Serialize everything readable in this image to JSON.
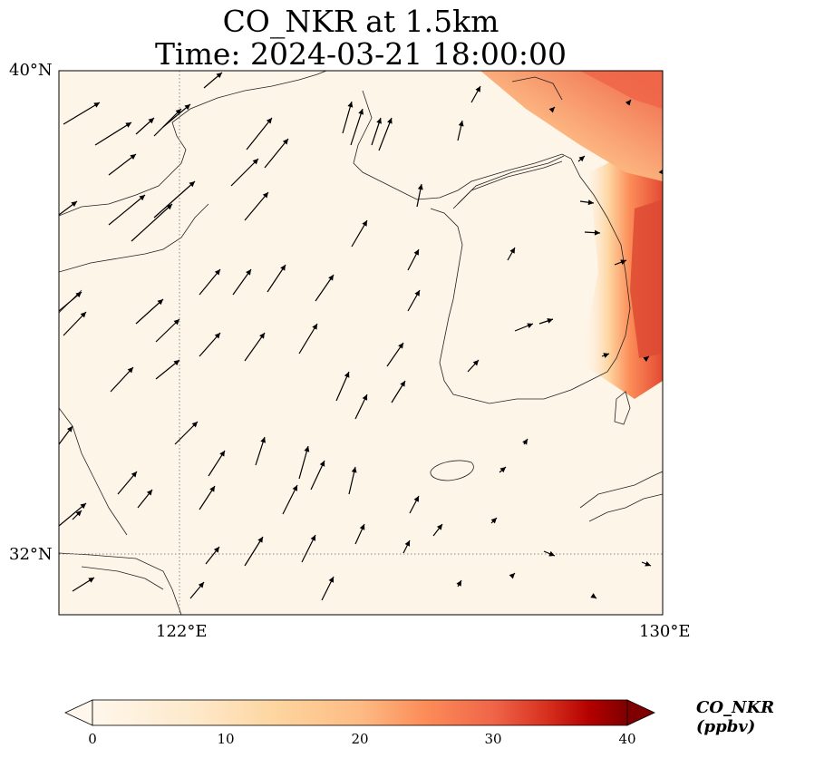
{
  "title": {
    "line1": "CO_NKR at 1.5km",
    "line2": "Time: 2024-03-21 18:00:00"
  },
  "axes": {
    "lon_ticks": [
      "122°E",
      "130°E"
    ],
    "lat_ticks": [
      "40°N",
      "32°N"
    ],
    "lon_range": [
      120,
      130
    ],
    "lat_range": [
      31,
      40
    ]
  },
  "colorbar": {
    "label": "CO_NKR (ppbv)",
    "ticks": [
      "0",
      "10",
      "20",
      "30",
      "40"
    ],
    "range": [
      0,
      40
    ],
    "colormap": "OrRd",
    "extend": "both"
  },
  "colors": {
    "low": "#fff7ec",
    "mid": "#fdbb84",
    "high": "#d7301f",
    "max": "#7f0000"
  },
  "overlays": [
    "wind-vectors",
    "coastlines",
    "gridlines"
  ]
}
